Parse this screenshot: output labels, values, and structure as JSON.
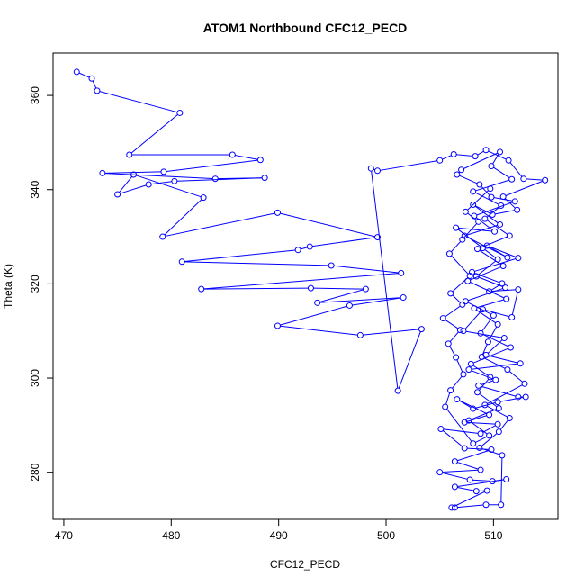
{
  "chart_data": {
    "type": "line",
    "title": "ATOM1 Northbound CFC12_PECD",
    "xlabel": "CFC12_PECD",
    "ylabel": "Theta (K)",
    "xlim": [
      469,
      516
    ],
    "ylim": [
      270,
      369
    ],
    "xticks": [
      470,
      480,
      490,
      500,
      510
    ],
    "yticks": [
      280,
      300,
      320,
      340,
      360
    ],
    "grid": false,
    "marker": "open-circle",
    "line_style": "connected",
    "series": [
      {
        "color": "#0000ff",
        "points": [
          [
            471.2,
            365.0
          ],
          [
            472.6,
            363.6
          ],
          [
            473.1,
            361.0
          ],
          [
            480.8,
            356.3
          ],
          [
            476.1,
            347.4
          ],
          [
            485.7,
            347.4
          ],
          [
            488.3,
            346.3
          ],
          [
            479.3,
            343.8
          ],
          [
            473.6,
            343.5
          ],
          [
            484.1,
            342.3
          ],
          [
            488.7,
            342.5
          ],
          [
            480.3,
            341.8
          ],
          [
            477.9,
            341.1
          ],
          [
            475.0,
            339.0
          ],
          [
            476.5,
            343.2
          ],
          [
            483.0,
            338.3
          ],
          [
            479.2,
            330.0
          ],
          [
            489.9,
            335.1
          ],
          [
            499.2,
            329.9
          ],
          [
            492.9,
            327.9
          ],
          [
            491.8,
            327.2
          ],
          [
            481.0,
            324.7
          ],
          [
            494.9,
            323.9
          ],
          [
            501.4,
            322.3
          ],
          [
            482.8,
            318.9
          ],
          [
            493.0,
            319.1
          ],
          [
            498.1,
            318.9
          ],
          [
            493.6,
            316.0
          ],
          [
            501.6,
            317.1
          ],
          [
            496.6,
            315.4
          ],
          [
            489.9,
            311.1
          ],
          [
            497.6,
            309.1
          ],
          [
            503.3,
            310.4
          ],
          [
            501.1,
            297.3
          ],
          [
            498.6,
            344.5
          ],
          [
            499.2,
            344.0
          ],
          [
            505.0,
            346.2
          ],
          [
            506.3,
            347.5
          ],
          [
            508.3,
            347.1
          ],
          [
            509.3,
            348.4
          ],
          [
            511.4,
            346.2
          ],
          [
            512.8,
            342.3
          ],
          [
            514.8,
            342.0
          ],
          [
            510.9,
            338.5
          ],
          [
            512.2,
            335.7
          ],
          [
            509.9,
            334.7
          ],
          [
            508.1,
            336.8
          ],
          [
            510.6,
            332.6
          ],
          [
            507.3,
            330.2
          ],
          [
            511.3,
            325.6
          ],
          [
            509.4,
            328.1
          ],
          [
            512.3,
            325.5
          ],
          [
            508.0,
            322.5
          ],
          [
            510.8,
            320.1
          ],
          [
            509.6,
            318.4
          ],
          [
            512.3,
            318.8
          ],
          [
            511.7,
            312.9
          ],
          [
            509.0,
            314.6
          ],
          [
            507.2,
            310.0
          ],
          [
            511.0,
            308.5
          ],
          [
            509.3,
            304.9
          ],
          [
            512.5,
            303.1
          ],
          [
            507.7,
            301.8
          ],
          [
            510.2,
            299.6
          ],
          [
            508.6,
            298.4
          ],
          [
            512.3,
            296.0
          ],
          [
            513.0,
            296.0
          ],
          [
            510.4,
            294.9
          ],
          [
            508.1,
            293.5
          ],
          [
            506.6,
            295.5
          ],
          [
            509.6,
            292.2
          ],
          [
            507.3,
            290.6
          ],
          [
            510.4,
            290.2
          ],
          [
            508.8,
            288.2
          ],
          [
            505.1,
            289.2
          ],
          [
            507.3,
            285.1
          ],
          [
            509.8,
            284.8
          ],
          [
            506.4,
            282.3
          ],
          [
            508.8,
            280.5
          ],
          [
            505.0,
            280.0
          ],
          [
            507.8,
            278.4
          ],
          [
            509.9,
            278.1
          ],
          [
            511.2,
            278.5
          ],
          [
            506.4,
            276.9
          ],
          [
            508.4,
            276.0
          ],
          [
            509.4,
            276.1
          ],
          [
            506.1,
            272.5
          ],
          [
            506.4,
            272.5
          ],
          [
            509.3,
            273.1
          ],
          [
            510.7,
            273.1
          ],
          [
            510.8,
            283.6
          ],
          [
            508.7,
            285.2
          ],
          [
            510.5,
            288.6
          ],
          [
            511.5,
            291.5
          ],
          [
            509.2,
            294.3
          ],
          [
            512.9,
            298.8
          ],
          [
            511.3,
            301.8
          ],
          [
            508.9,
            304.5
          ],
          [
            509.5,
            307.7
          ],
          [
            510.4,
            311.4
          ],
          [
            508.2,
            314.8
          ],
          [
            511.2,
            316.8
          ],
          [
            507.6,
            320.6
          ],
          [
            510.9,
            323.8
          ],
          [
            508.5,
            327.4
          ],
          [
            511.5,
            330.2
          ],
          [
            509.2,
            333.8
          ],
          [
            510.7,
            336.6
          ],
          [
            508.1,
            339.6
          ],
          [
            511.7,
            342.2
          ],
          [
            509.8,
            345.0
          ],
          [
            510.6,
            348.0
          ],
          [
            507.0,
            344.2
          ],
          [
            506.6,
            343.2
          ],
          [
            508.7,
            341.1
          ],
          [
            509.8,
            338.4
          ],
          [
            512.0,
            337.5
          ],
          [
            508.2,
            334.4
          ],
          [
            510.1,
            331.1
          ],
          [
            506.5,
            331.9
          ],
          [
            509.0,
            327.6
          ],
          [
            510.4,
            325.2
          ],
          [
            508.4,
            321.6
          ],
          [
            511.1,
            319.2
          ],
          [
            507.4,
            316.3
          ],
          [
            510.0,
            313.3
          ],
          [
            508.8,
            309.5
          ],
          [
            511.6,
            306.5
          ],
          [
            507.9,
            303.0
          ],
          [
            509.7,
            300.2
          ],
          [
            508.5,
            297.0
          ],
          [
            510.5,
            293.6
          ],
          [
            507.7,
            291.0
          ],
          [
            509.6,
            287.8
          ],
          [
            508.1,
            286.1
          ],
          [
            505.5,
            293.9
          ],
          [
            506.0,
            297.4
          ],
          [
            507.2,
            300.8
          ],
          [
            506.5,
            304.4
          ],
          [
            505.8,
            307.3
          ],
          [
            506.9,
            310.2
          ],
          [
            505.3,
            312.7
          ],
          [
            507.1,
            315.6
          ],
          [
            506.0,
            318.0
          ],
          [
            507.8,
            321.7
          ],
          [
            505.9,
            326.4
          ],
          [
            507.1,
            329.4
          ],
          [
            508.6,
            333.2
          ],
          [
            507.4,
            335.3
          ],
          [
            509.7,
            340.2
          ]
        ]
      }
    ]
  }
}
